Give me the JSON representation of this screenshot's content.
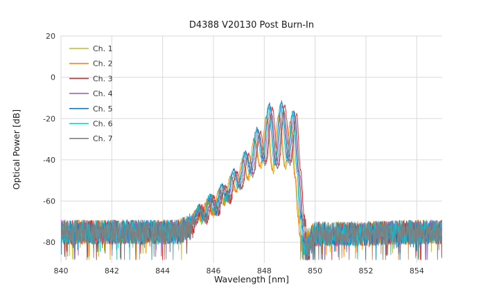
{
  "chart_data": {
    "type": "line",
    "title": "D4388 V20130 Post Burn-In",
    "xlabel": "Wavelength [nm]",
    "ylabel": "Optical Power [dB]",
    "xlim": [
      840,
      855
    ],
    "ylim": [
      -90,
      20
    ],
    "xticks": [
      840,
      842,
      844,
      846,
      848,
      850,
      852,
      854
    ],
    "yticks": [
      20,
      0,
      -20,
      -40,
      -60,
      -80
    ],
    "grid": true,
    "grid_color": "#d9d9d9",
    "legend_position": "upper left",
    "noise_floor_db": -75,
    "envelope_base": [
      [
        840.0,
        -75
      ],
      [
        844.6,
        -75
      ],
      [
        845.0,
        -73
      ],
      [
        845.2,
        -70
      ],
      [
        845.42,
        -63
      ],
      [
        845.62,
        -69
      ],
      [
        845.88,
        -58
      ],
      [
        846.08,
        -65
      ],
      [
        846.34,
        -52
      ],
      [
        846.54,
        -59
      ],
      [
        846.8,
        -45
      ],
      [
        847.0,
        -53
      ],
      [
        847.26,
        -36
      ],
      [
        847.46,
        -46
      ],
      [
        847.72,
        -25
      ],
      [
        847.95,
        -40
      ],
      [
        848.2,
        -13
      ],
      [
        848.44,
        -42
      ],
      [
        848.68,
        -12
      ],
      [
        848.93,
        -40
      ],
      [
        849.15,
        -16
      ],
      [
        849.32,
        -45
      ],
      [
        849.45,
        -68
      ],
      [
        849.58,
        -84
      ],
      [
        849.75,
        -80
      ],
      [
        849.95,
        -76
      ],
      [
        855.0,
        -75
      ]
    ],
    "series": [
      {
        "name": "Ch. 1",
        "color": "#bcbd22",
        "dx": -0.08,
        "dpeak": -8
      },
      {
        "name": "Ch. 2",
        "color": "#ff7f0e",
        "dx": -0.12,
        "dpeak": -6
      },
      {
        "name": "Ch. 3",
        "color": "#d62728",
        "dx": 0.12,
        "dpeak": -2
      },
      {
        "name": "Ch. 4",
        "color": "#9467bd",
        "dx": 0.04,
        "dpeak": -1.5
      },
      {
        "name": "Ch. 5",
        "color": "#1f77b4",
        "dx": 0.0,
        "dpeak": 0
      },
      {
        "name": "Ch. 6",
        "color": "#17becf",
        "dx": -0.04,
        "dpeak": -1
      },
      {
        "name": "Ch. 7",
        "color": "#7f7f7f",
        "dx": 0.08,
        "dpeak": -4
      }
    ]
  }
}
